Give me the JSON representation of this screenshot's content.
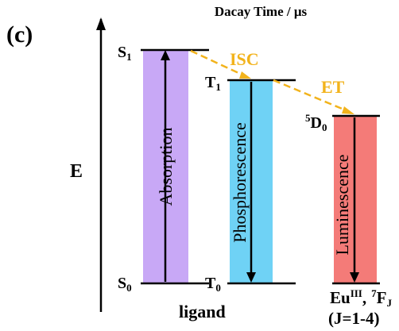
{
  "panel_label": "(c)",
  "header_title": "Dacay Time / μs",
  "energy_axis_label": "E",
  "ligand_caption": "ligand",
  "levels": {
    "s1": {
      "main": "S",
      "sub": "1"
    },
    "s0": {
      "main": "S",
      "sub": "0"
    },
    "t1": {
      "main": "T",
      "sub": "1"
    },
    "t0": {
      "main": "T",
      "sub": "0"
    },
    "d0": {
      "sup": "5",
      "main": "D",
      "sub": "0"
    }
  },
  "transitions": {
    "isc": "ISC",
    "et": "ET"
  },
  "bars": {
    "absorption": {
      "label": "Absorption",
      "color": "#c8a8f6"
    },
    "phosphorescence": {
      "label": "Phosphorescence",
      "color": "#6fd2f5"
    },
    "luminescence": {
      "label": "Luminescence",
      "color": "#f47b78"
    }
  },
  "europium": {
    "eu_main": "Eu",
    "eu_sup": "III",
    "separator": ",",
    "f_sup": "7",
    "f_main": "F",
    "f_sub": "J",
    "j_range": "(J=1-4)"
  },
  "colors": {
    "transfer_arrow": "#f2b31c",
    "line": "#000000"
  }
}
